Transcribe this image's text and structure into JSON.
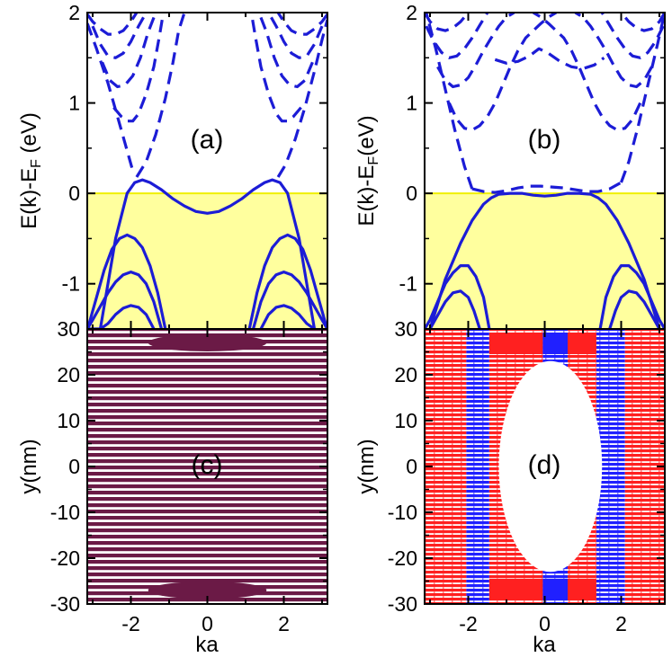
{
  "chart_data": [
    {
      "panel_label": "(a)",
      "type": "line",
      "xlabel": "",
      "ylabel_main": "E(k)-E",
      "ylabel_sub": "F",
      "ylabel_unit": " (eV)",
      "xlim": [
        -3.14159,
        3.14159
      ],
      "ylim": [
        -1.5,
        2
      ],
      "yticks": [
        -1,
        0,
        1,
        2
      ],
      "xticks": [],
      "fermi_fill": {
        "from": -1.5,
        "to": 0,
        "color": "#ffff9e",
        "line_color": "#f0f000"
      },
      "line_color": "#1c1cd6",
      "series": [
        {
          "style": "solid",
          "x": [
            -1.4,
            -1.6,
            -1.8,
            -2.0,
            -2.2,
            -2.4,
            -2.6,
            -2.8,
            -3.0,
            -3.14
          ],
          "y": [
            -1.5,
            -1.34,
            -1.26,
            -1.24,
            -1.27,
            -1.34,
            -1.44,
            -1.5,
            -1.5,
            -1.5
          ]
        },
        {
          "style": "solid",
          "x": [
            1.4,
            1.6,
            1.8,
            2.0,
            2.2,
            2.4,
            2.6,
            2.8
          ],
          "y": [
            -1.5,
            -1.34,
            -1.26,
            -1.24,
            -1.27,
            -1.34,
            -1.44,
            -1.5
          ]
        },
        {
          "style": "solid",
          "x": [
            -1.2,
            -1.4,
            -1.6,
            -1.8,
            -2.0,
            -2.2,
            -2.4,
            -2.6,
            -2.8,
            -3.0,
            -3.14
          ],
          "y": [
            -1.5,
            -1.2,
            -1.0,
            -0.9,
            -0.87,
            -0.9,
            -0.98,
            -1.1,
            -1.25,
            -1.4,
            -1.5
          ]
        },
        {
          "style": "solid",
          "x": [
            1.2,
            1.4,
            1.6,
            1.8,
            2.0,
            2.2,
            2.4,
            2.6,
            2.8,
            3.0,
            3.14
          ],
          "y": [
            -1.5,
            -1.2,
            -1.0,
            -0.9,
            -0.87,
            -0.9,
            -0.98,
            -1.1,
            -1.25,
            -1.4,
            -1.5
          ]
        },
        {
          "style": "solid",
          "x": [
            -1.1,
            -1.3,
            -1.5,
            -1.7,
            -1.9,
            -2.1,
            -2.3,
            -2.5,
            -2.7,
            -2.9,
            -3.1
          ],
          "y": [
            -1.5,
            -1.1,
            -0.8,
            -0.6,
            -0.5,
            -0.46,
            -0.5,
            -0.62,
            -0.85,
            -1.15,
            -1.45
          ]
        },
        {
          "style": "solid",
          "x": [
            1.1,
            1.3,
            1.5,
            1.7,
            1.9,
            2.1,
            2.3,
            2.5,
            2.7,
            2.9,
            3.1
          ],
          "y": [
            -1.5,
            -1.1,
            -0.8,
            -0.6,
            -0.5,
            -0.46,
            -0.5,
            -0.62,
            -0.85,
            -1.15,
            -1.45
          ]
        },
        {
          "style": "solid",
          "x": [
            -2.8,
            -2.4,
            -2.1,
            -1.9,
            -1.7,
            -1.5,
            -1.2,
            -0.9,
            -0.6,
            -0.3,
            0,
            0.3,
            0.6,
            0.9,
            1.2,
            1.5,
            1.7,
            1.9,
            2.1,
            2.4,
            2.8
          ],
          "y": [
            -1.5,
            -0.5,
            0.0,
            0.12,
            0.15,
            0.12,
            0.04,
            -0.06,
            -0.14,
            -0.2,
            -0.22,
            -0.2,
            -0.14,
            -0.06,
            0.04,
            0.12,
            0.15,
            0.12,
            0.0,
            -0.5,
            -1.5
          ]
        },
        {
          "style": "dashed",
          "x": [
            -1.85,
            -1.6,
            -1.35,
            -1.1,
            -0.9,
            -0.75,
            -0.6
          ],
          "y": [
            0.18,
            0.35,
            0.65,
            1.05,
            1.45,
            1.8,
            2.0
          ]
        },
        {
          "style": "dashed",
          "x": [
            1.85,
            2.05,
            2.3,
            2.55,
            2.8,
            3.0,
            3.14
          ],
          "y": [
            0.18,
            0.32,
            0.6,
            0.95,
            1.35,
            1.7,
            1.92
          ]
        },
        {
          "style": "dashed",
          "x": [
            -3.14,
            -2.9,
            -2.6,
            -2.35,
            -2.15,
            -1.95
          ],
          "y": [
            1.88,
            1.6,
            1.22,
            0.85,
            0.55,
            0.25
          ]
        },
        {
          "style": "dashed",
          "x": [
            -2.45,
            -2.25,
            -2.1,
            -1.95,
            -1.8,
            -1.6,
            -1.4,
            -1.25,
            -1.15
          ],
          "y": [
            0.95,
            0.85,
            0.8,
            0.8,
            0.88,
            1.1,
            1.4,
            1.75,
            2.0
          ]
        },
        {
          "style": "dashed",
          "x": [
            -2.75,
            -2.55,
            -2.35,
            -2.15,
            -1.95,
            -1.75,
            -1.55,
            -1.35
          ],
          "y": [
            1.45,
            1.25,
            1.18,
            1.2,
            1.3,
            1.5,
            1.78,
            2.0
          ]
        },
        {
          "style": "dashed",
          "x": [
            -3.0,
            -2.8,
            -2.6,
            -2.4,
            -2.2,
            -2.0,
            -1.8,
            -1.6
          ],
          "y": [
            1.85,
            1.65,
            1.52,
            1.5,
            1.55,
            1.68,
            1.85,
            2.0
          ]
        },
        {
          "style": "dashed",
          "x": [
            -3.14,
            -3.0,
            -2.8,
            -2.6,
            -2.4,
            -2.2,
            -2.0,
            -1.85
          ],
          "y": [
            1.98,
            1.9,
            1.82,
            1.76,
            1.76,
            1.8,
            1.9,
            2.0
          ]
        },
        {
          "style": "dashed",
          "x": [
            2.45,
            2.25,
            2.1,
            1.95,
            1.8,
            1.6,
            1.4,
            1.25,
            1.15
          ],
          "y": [
            0.95,
            0.85,
            0.8,
            0.8,
            0.88,
            1.1,
            1.4,
            1.75,
            2.0
          ]
        },
        {
          "style": "dashed",
          "x": [
            2.75,
            2.55,
            2.35,
            2.15,
            1.95,
            1.75,
            1.55,
            1.35
          ],
          "y": [
            1.45,
            1.25,
            1.18,
            1.2,
            1.3,
            1.5,
            1.78,
            2.0
          ]
        },
        {
          "style": "dashed",
          "x": [
            3.0,
            2.8,
            2.6,
            2.4,
            2.2,
            2.0,
            1.8,
            1.6
          ],
          "y": [
            1.85,
            1.65,
            1.52,
            1.5,
            1.55,
            1.68,
            1.85,
            2.0
          ]
        },
        {
          "style": "dashed",
          "x": [
            3.14,
            3.0,
            2.8,
            2.6,
            2.4,
            2.2,
            2.0,
            1.85
          ],
          "y": [
            1.98,
            1.9,
            1.82,
            1.76,
            1.76,
            1.8,
            1.9,
            2.0
          ]
        }
      ]
    },
    {
      "panel_label": "(b)",
      "type": "line",
      "xlabel": "",
      "ylabel_main": "E(k)-E",
      "ylabel_sub": "F",
      "ylabel_unit": "(eV)",
      "xlim": [
        -3.14159,
        3.14159
      ],
      "ylim": [
        -1.5,
        2
      ],
      "yticks": [
        -1,
        0,
        1,
        2
      ],
      "xticks": [],
      "fermi_fill": {
        "from": -1.5,
        "to": 0,
        "color": "#ffff9e",
        "line_color": "#f0f000"
      },
      "line_color": "#1c1cd6",
      "series": [
        {
          "style": "solid",
          "x": [
            -3.0,
            -2.6,
            -2.2,
            -1.9,
            -1.6,
            -1.4,
            -1.2,
            -0.9,
            -0.6,
            -0.3,
            0,
            0.3,
            0.6,
            0.9,
            1.2,
            1.4,
            1.6,
            1.9,
            2.2,
            2.6,
            3.0
          ],
          "y": [
            -1.5,
            -0.95,
            -0.55,
            -0.3,
            -0.12,
            -0.05,
            -0.01,
            0.0,
            0.0,
            -0.02,
            -0.03,
            -0.02,
            0.0,
            0.0,
            -0.01,
            -0.05,
            -0.12,
            -0.3,
            -0.55,
            -0.95,
            -1.5
          ]
        },
        {
          "style": "solid",
          "x": [
            -1.45,
            -1.6,
            -1.8,
            -2.0,
            -2.2,
            -2.4,
            -2.6,
            -2.8,
            -3.0,
            -3.14
          ],
          "y": [
            -1.5,
            -1.15,
            -0.92,
            -0.8,
            -0.8,
            -0.88,
            -1.0,
            -1.2,
            -1.4,
            -1.5
          ]
        },
        {
          "style": "solid",
          "x": [
            1.45,
            1.6,
            1.8,
            2.0,
            2.2,
            2.4,
            2.6,
            2.8,
            3.0,
            3.14
          ],
          "y": [
            -1.5,
            -1.15,
            -0.92,
            -0.8,
            -0.8,
            -0.88,
            -1.0,
            -1.2,
            -1.4,
            -1.5
          ]
        },
        {
          "style": "solid",
          "x": [
            -1.7,
            -1.85,
            -2.0,
            -2.2,
            -2.4,
            -2.6,
            -2.8,
            -3.0
          ],
          "y": [
            -1.5,
            -1.3,
            -1.15,
            -1.08,
            -1.1,
            -1.2,
            -1.35,
            -1.5
          ]
        },
        {
          "style": "solid",
          "x": [
            1.7,
            1.85,
            2.0,
            2.2,
            2.4,
            2.6,
            2.8,
            3.0
          ],
          "y": [
            -1.5,
            -1.3,
            -1.15,
            -1.08,
            -1.1,
            -1.2,
            -1.35,
            -1.5
          ]
        },
        {
          "style": "dashed",
          "x": [
            -1.9,
            -1.6,
            -1.3,
            -1.0,
            -0.7,
            -0.4,
            -0.1,
            0.2,
            0.5,
            0.8,
            1.1,
            1.4,
            1.7,
            2.0
          ],
          "y": [
            0.05,
            0.02,
            0.01,
            0.03,
            0.06,
            0.08,
            0.08,
            0.07,
            0.06,
            0.04,
            0.02,
            0.02,
            0.05,
            0.12
          ]
        },
        {
          "style": "dashed",
          "x": [
            2.0,
            2.2,
            2.45,
            2.7,
            2.95,
            3.14
          ],
          "y": [
            0.12,
            0.35,
            0.75,
            1.2,
            1.65,
            2.0
          ]
        },
        {
          "style": "dashed",
          "x": [
            -1.9,
            -2.1,
            -2.35,
            -2.6,
            -2.85,
            -3.1
          ],
          "y": [
            0.05,
            0.3,
            0.7,
            1.15,
            1.6,
            2.0
          ]
        },
        {
          "style": "dashed",
          "x": [
            -2.5,
            -2.3,
            -2.1,
            -1.9,
            -1.7,
            -1.5,
            -1.3,
            -1.1,
            -0.9,
            -0.7,
            -0.5,
            -0.3,
            -0.1,
            0.1,
            0.3
          ],
          "y": [
            1.0,
            0.82,
            0.72,
            0.7,
            0.75,
            0.85,
            1.0,
            1.2,
            1.4,
            1.58,
            1.72,
            1.8,
            1.88,
            1.95,
            2.0
          ]
        },
        {
          "style": "dashed",
          "x": [
            2.5,
            2.3,
            2.1,
            1.9,
            1.7,
            1.5,
            1.3,
            1.1,
            0.9,
            0.7,
            0.5,
            0.3,
            0.1,
            -0.1,
            -0.3
          ],
          "y": [
            1.0,
            0.82,
            0.72,
            0.7,
            0.75,
            0.85,
            1.0,
            1.2,
            1.4,
            1.58,
            1.72,
            1.8,
            1.88,
            1.95,
            2.0
          ]
        },
        {
          "style": "dashed",
          "x": [
            -2.8,
            -2.6,
            -2.4,
            -2.2,
            -2.0,
            -1.8,
            -1.6,
            -1.4,
            -1.2,
            -1.0,
            -0.8
          ],
          "y": [
            1.4,
            1.25,
            1.18,
            1.2,
            1.28,
            1.42,
            1.58,
            1.72,
            1.85,
            1.95,
            2.0
          ]
        },
        {
          "style": "dashed",
          "x": [
            2.8,
            2.6,
            2.4,
            2.2,
            2.0,
            1.8,
            1.6,
            1.4,
            1.2,
            1.0,
            0.8
          ],
          "y": [
            1.4,
            1.25,
            1.18,
            1.2,
            1.28,
            1.42,
            1.58,
            1.72,
            1.85,
            1.95,
            2.0
          ]
        },
        {
          "style": "dashed",
          "x": [
            -3.1,
            -2.9,
            -2.7,
            -2.5,
            -2.3,
            -2.1,
            -1.9,
            -1.7,
            -1.5
          ],
          "y": [
            1.85,
            1.68,
            1.56,
            1.5,
            1.52,
            1.6,
            1.72,
            1.86,
            2.0
          ]
        },
        {
          "style": "dashed",
          "x": [
            3.1,
            2.9,
            2.7,
            2.5,
            2.3,
            2.1,
            1.9,
            1.7,
            1.5
          ],
          "y": [
            1.85,
            1.68,
            1.56,
            1.5,
            1.52,
            1.6,
            1.72,
            1.86,
            2.0
          ]
        },
        {
          "style": "dashed",
          "x": [
            -3.14,
            -3.0,
            -2.8,
            -2.6,
            -2.4,
            -2.2,
            -2.0
          ],
          "y": [
            2.0,
            1.9,
            1.82,
            1.8,
            1.83,
            1.9,
            2.0
          ]
        },
        {
          "style": "dashed",
          "x": [
            3.14,
            3.0,
            2.8,
            2.6,
            2.4,
            2.2,
            2.0
          ],
          "y": [
            2.0,
            1.9,
            1.82,
            1.8,
            1.83,
            1.9,
            2.0
          ]
        },
        {
          "style": "dashed",
          "x": [
            -1.3,
            -1.0,
            -0.7,
            -0.4,
            -0.15,
            0.1,
            0.4,
            0.7,
            1.0,
            1.3,
            1.55
          ],
          "y": [
            1.48,
            1.44,
            1.46,
            1.52,
            1.6,
            1.55,
            1.46,
            1.4,
            1.38,
            1.42,
            1.5
          ]
        }
      ]
    },
    {
      "panel_label": "(c)",
      "type": "scatter",
      "xlabel": "ka",
      "ylabel": "y(nm)",
      "xlim": [
        -3.14159,
        3.14159
      ],
      "ylim": [
        -30,
        30
      ],
      "xticks": [
        -2,
        0,
        2
      ],
      "yticks": [
        -30,
        -20,
        -10,
        0,
        10,
        20,
        30
      ],
      "density_color": "#6b1a46",
      "description_fields": {
        "row_spacing_nm": 1.2,
        "edge_band_nm": [
          25.5,
          28.5
        ],
        "edge_halfwidth_ka": 1.55
      }
    },
    {
      "panel_label": "(d)",
      "type": "scatter",
      "xlabel": "ka",
      "ylabel": "y(nm)",
      "xlim": [
        -3.14159,
        3.14159
      ],
      "ylim": [
        -30,
        30
      ],
      "xticks": [
        -2,
        0,
        2
      ],
      "yticks": [
        -30,
        -20,
        -10,
        0,
        10,
        20,
        30
      ],
      "spin_colors": {
        "up": "#ff2020",
        "down": "#2020ff"
      },
      "hole_ellipse": {
        "cx": 0.15,
        "cy": 0,
        "rx": 1.35,
        "ry": 23
      },
      "bands": [
        {
          "x0": -3.14,
          "x1": -2.05,
          "color": "up"
        },
        {
          "x0": -2.05,
          "x1": -1.45,
          "color": "down"
        },
        {
          "x0": -1.45,
          "x1": -0.05,
          "color": "up"
        },
        {
          "x0": -0.05,
          "x1": 0.6,
          "color": "down"
        },
        {
          "x0": 0.6,
          "x1": 1.35,
          "color": "up"
        },
        {
          "x0": 1.35,
          "x1": 2.1,
          "color": "down"
        },
        {
          "x0": 2.1,
          "x1": 3.14,
          "color": "up"
        }
      ]
    }
  ]
}
